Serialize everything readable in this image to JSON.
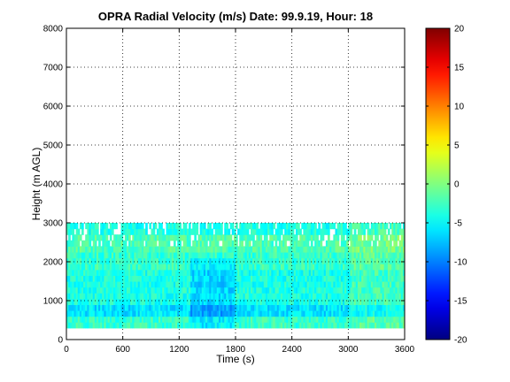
{
  "chart_data": {
    "type": "heatmap",
    "title": "OPRA Radial Velocity (m/s)  Date: 99.9.19, Hour: 18",
    "xlabel": "Time (s)",
    "ylabel": "Height (m AGL)",
    "xlim": [
      0,
      3600
    ],
    "ylim": [
      0,
      8000
    ],
    "xticks": [
      "0",
      "600",
      "1200",
      "1800",
      "2400",
      "3000",
      "3600"
    ],
    "yticks": [
      "0",
      "1000",
      "2000",
      "3000",
      "4000",
      "5000",
      "6000",
      "7000",
      "8000"
    ],
    "grid": true,
    "colorbar": {
      "min": -20,
      "max": 20,
      "ticks": [
        "20",
        "15",
        "10",
        "5",
        "0",
        "-5",
        "-10",
        "-15",
        "-20"
      ],
      "colormap": "jet"
    },
    "data_extent": {
      "time_range": [
        0,
        3600
      ],
      "height_range": [
        300,
        3000
      ]
    },
    "velocity_bands": [
      {
        "height": [
          300,
          600
        ],
        "velocity": -3
      },
      {
        "height": [
          600,
          900
        ],
        "velocity": -6
      },
      {
        "height": [
          900,
          1800
        ],
        "velocity": -4
      },
      {
        "height": [
          1800,
          2200
        ],
        "velocity": -3
      },
      {
        "height": [
          2200,
          2600
        ],
        "velocity": -2
      },
      {
        "height": [
          2600,
          3000
        ],
        "velocity": -4
      }
    ]
  }
}
